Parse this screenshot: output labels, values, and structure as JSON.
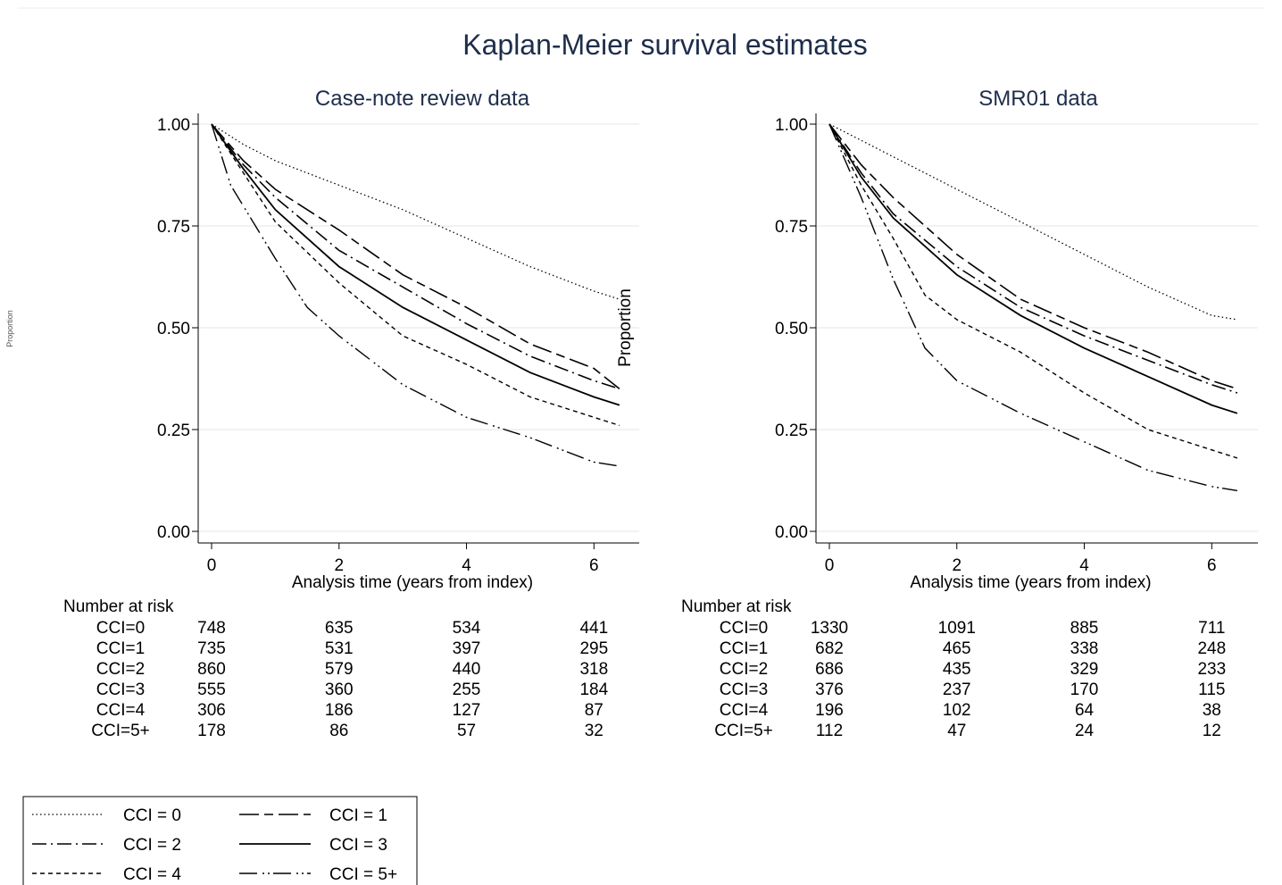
{
  "title": "Kaplan-Meier survival estimates",
  "colors": {
    "title": "#1e2d4a",
    "axis": "#000000",
    "grid": "#e6e6e6",
    "curve": "#000000"
  },
  "chart_data": [
    {
      "type": "line",
      "title": "Case-note review data",
      "xlabel": "Analysis time (years from index)",
      "ylabel": "Proportion",
      "xlim": [
        0,
        6.5
      ],
      "ylim": [
        0,
        1
      ],
      "xticks": [
        "0",
        "2",
        "4",
        "6"
      ],
      "yticks": [
        "0.00",
        "0.25",
        "0.50",
        "0.75",
        "1.00"
      ],
      "grid": true,
      "series": [
        {
          "name": "CCI = 0",
          "x": [
            0,
            0.5,
            1,
            2,
            3,
            4,
            5,
            6,
            6.4
          ],
          "y": [
            1.0,
            0.95,
            0.91,
            0.85,
            0.79,
            0.72,
            0.65,
            0.59,
            0.57
          ]
        },
        {
          "name": "CCI = 1",
          "x": [
            0,
            0.5,
            1,
            2,
            3,
            4,
            5,
            6,
            6.4
          ],
          "y": [
            1.0,
            0.91,
            0.84,
            0.74,
            0.63,
            0.55,
            0.46,
            0.4,
            0.35
          ]
        },
        {
          "name": "CCI = 2",
          "x": [
            0,
            0.5,
            1,
            2,
            3,
            4,
            5,
            6,
            6.4
          ],
          "y": [
            1.0,
            0.9,
            0.82,
            0.69,
            0.6,
            0.51,
            0.43,
            0.37,
            0.35
          ]
        },
        {
          "name": "CCI = 3",
          "x": [
            0,
            0.5,
            1,
            2,
            3,
            4,
            5,
            6,
            6.4
          ],
          "y": [
            1.0,
            0.89,
            0.79,
            0.65,
            0.55,
            0.47,
            0.39,
            0.33,
            0.31
          ]
        },
        {
          "name": "CCI = 4",
          "x": [
            0,
            0.5,
            1,
            2,
            3,
            4,
            5,
            6,
            6.4
          ],
          "y": [
            1.0,
            0.88,
            0.76,
            0.61,
            0.48,
            0.41,
            0.33,
            0.28,
            0.26
          ]
        },
        {
          "name": "CCI = 5+",
          "x": [
            0,
            0.3,
            1,
            1.5,
            2,
            3,
            4,
            5,
            6,
            6.4
          ],
          "y": [
            1.0,
            0.85,
            0.67,
            0.55,
            0.48,
            0.36,
            0.28,
            0.23,
            0.17,
            0.16
          ]
        }
      ],
      "risk_table": {
        "header": "Number at risk",
        "times": [
          0,
          2,
          4,
          6
        ],
        "rows": [
          {
            "label": "CCI=0",
            "values": [
              "748",
              "635",
              "534",
              "441"
            ]
          },
          {
            "label": "CCI=1",
            "values": [
              "735",
              "531",
              "397",
              "295"
            ]
          },
          {
            "label": "CCI=2",
            "values": [
              "860",
              "579",
              "440",
              "318"
            ]
          },
          {
            "label": "CCI=3",
            "values": [
              "555",
              "360",
              "255",
              "184"
            ]
          },
          {
            "label": "CCI=4",
            "values": [
              "306",
              "186",
              "127",
              "87"
            ]
          },
          {
            "label": "CCI=5+",
            "values": [
              "178",
              "86",
              "57",
              "32"
            ]
          }
        ]
      }
    },
    {
      "type": "line",
      "title": "SMR01 data",
      "xlabel": "Analysis time (years from index)",
      "ylabel": "",
      "xlim": [
        0,
        6.5
      ],
      "ylim": [
        0,
        1
      ],
      "xticks": [
        "0",
        "2",
        "4",
        "6"
      ],
      "yticks": [
        "0.00",
        "0.25",
        "0.50",
        "0.75",
        "1.00"
      ],
      "grid": true,
      "series": [
        {
          "name": "CCI = 0",
          "x": [
            0,
            0.5,
            1,
            2,
            3,
            4,
            5,
            6,
            6.4
          ],
          "y": [
            1.0,
            0.96,
            0.92,
            0.84,
            0.76,
            0.68,
            0.6,
            0.53,
            0.52
          ]
        },
        {
          "name": "CCI = 1",
          "x": [
            0,
            0.5,
            1,
            2,
            3,
            4,
            5,
            6,
            6.4
          ],
          "y": [
            1.0,
            0.9,
            0.82,
            0.68,
            0.57,
            0.5,
            0.44,
            0.37,
            0.35
          ]
        },
        {
          "name": "CCI = 2",
          "x": [
            0,
            0.5,
            1,
            2,
            3,
            4,
            5,
            6,
            6.4
          ],
          "y": [
            1.0,
            0.88,
            0.78,
            0.65,
            0.55,
            0.48,
            0.42,
            0.36,
            0.34
          ]
        },
        {
          "name": "CCI = 3",
          "x": [
            0,
            0.5,
            1,
            2,
            3,
            4,
            5,
            6,
            6.4
          ],
          "y": [
            1.0,
            0.87,
            0.77,
            0.63,
            0.53,
            0.45,
            0.38,
            0.31,
            0.29
          ]
        },
        {
          "name": "CCI = 4",
          "x": [
            0,
            0.5,
            1,
            1.5,
            2,
            3,
            4,
            5,
            6,
            6.4
          ],
          "y": [
            1.0,
            0.85,
            0.72,
            0.58,
            0.52,
            0.44,
            0.34,
            0.25,
            0.2,
            0.18
          ]
        },
        {
          "name": "CCI = 5+",
          "x": [
            0,
            0.5,
            1,
            1.5,
            2,
            3,
            4,
            5,
            6,
            6.4
          ],
          "y": [
            1.0,
            0.82,
            0.62,
            0.45,
            0.37,
            0.29,
            0.22,
            0.15,
            0.11,
            0.1
          ]
        }
      ],
      "risk_table": {
        "header": "Number at risk",
        "times": [
          0,
          2,
          4,
          6
        ],
        "rows": [
          {
            "label": "CCI=0",
            "values": [
              "1330",
              "1091",
              "885",
              "711"
            ]
          },
          {
            "label": "CCI=1",
            "values": [
              "682",
              "465",
              "338",
              "248"
            ]
          },
          {
            "label": "CCI=2",
            "values": [
              "686",
              "435",
              "329",
              "233"
            ]
          },
          {
            "label": "CCI=3",
            "values": [
              "376",
              "237",
              "170",
              "115"
            ]
          },
          {
            "label": "CCI=4",
            "values": [
              "196",
              "102",
              "64",
              "38"
            ]
          },
          {
            "label": "CCI=5+",
            "values": [
              "112",
              "47",
              "24",
              "12"
            ]
          }
        ]
      }
    }
  ],
  "legend": {
    "position": "bottom-left",
    "items": [
      "CCI = 0",
      "CCI = 1",
      "CCI = 2",
      "CCI = 3",
      "CCI = 4",
      "CCI = 5+"
    ]
  }
}
